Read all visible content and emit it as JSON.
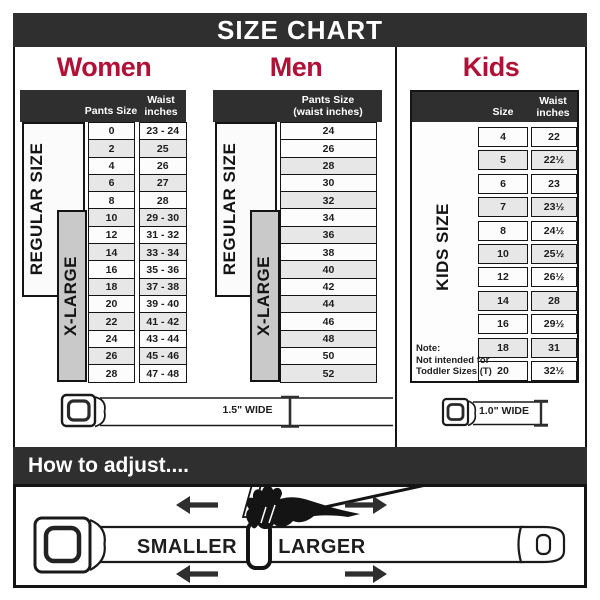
{
  "title": "SIZE CHART",
  "colors": {
    "accent": "#b01237",
    "bar_dark": "#2f2f2f",
    "xlarge_box": "#c9c9c9",
    "row_alt": "#e7e7e7"
  },
  "icons": {
    "buckle": "seatbelt-buckle-icon",
    "width_marker": "width-measure-icon",
    "arrow_left": "arrow-left-icon",
    "arrow_right": "arrow-right-icon",
    "hand": "pulling-hand-icon"
  },
  "sections": {
    "women": {
      "title": "Women",
      "col1_header": "Pants Size",
      "col2_header_line1": "Waist",
      "col2_header_line2": "inches",
      "regular_label": "REGULAR SIZE",
      "xlarge_label": "X-LARGE",
      "rows": [
        [
          "0",
          "23 - 24"
        ],
        [
          "2",
          "25"
        ],
        [
          "4",
          "26"
        ],
        [
          "6",
          "27"
        ],
        [
          "8",
          "28"
        ],
        [
          "10",
          "29 - 30"
        ],
        [
          "12",
          "31 - 32"
        ],
        [
          "14",
          "33 - 34"
        ],
        [
          "16",
          "35 - 36"
        ],
        [
          "18",
          "37 - 38"
        ],
        [
          "20",
          "39 - 40"
        ],
        [
          "22",
          "41 - 42"
        ],
        [
          "24",
          "43 - 44"
        ],
        [
          "26",
          "45 - 46"
        ],
        [
          "28",
          "47 - 48"
        ]
      ]
    },
    "men": {
      "title": "Men",
      "col_header_line1": "Pants Size",
      "col_header_line2": "(waist inches)",
      "regular_label": "REGULAR SIZE",
      "xlarge_label": "X-LARGE",
      "rows": [
        "24",
        "26",
        "28",
        "30",
        "32",
        "34",
        "36",
        "38",
        "40",
        "42",
        "44",
        "46",
        "48",
        "50",
        "52"
      ]
    },
    "kids": {
      "title": "Kids",
      "col1_header": "Size",
      "col2_header_line1": "Waist",
      "col2_header_line2": "inches",
      "size_label": "KIDS SIZE",
      "note_lines": [
        "Note:",
        "Not intended for",
        "Toddler Sizes (T)"
      ],
      "rows": [
        [
          "4",
          "22"
        ],
        [
          "5",
          "22½"
        ],
        [
          "6",
          "23"
        ],
        [
          "7",
          "23½"
        ],
        [
          "8",
          "24½"
        ],
        [
          "10",
          "25½"
        ],
        [
          "12",
          "26½"
        ],
        [
          "14",
          "28"
        ],
        [
          "16",
          "29½"
        ],
        [
          "18",
          "31"
        ],
        [
          "20",
          "32½"
        ]
      ]
    }
  },
  "belts": {
    "adult_label": "1.5\" WIDE",
    "kids_label": "1.0\" WIDE"
  },
  "adjust": {
    "header": "How to adjust....",
    "smaller_label": "SMALLER",
    "larger_label": "LARGER"
  }
}
